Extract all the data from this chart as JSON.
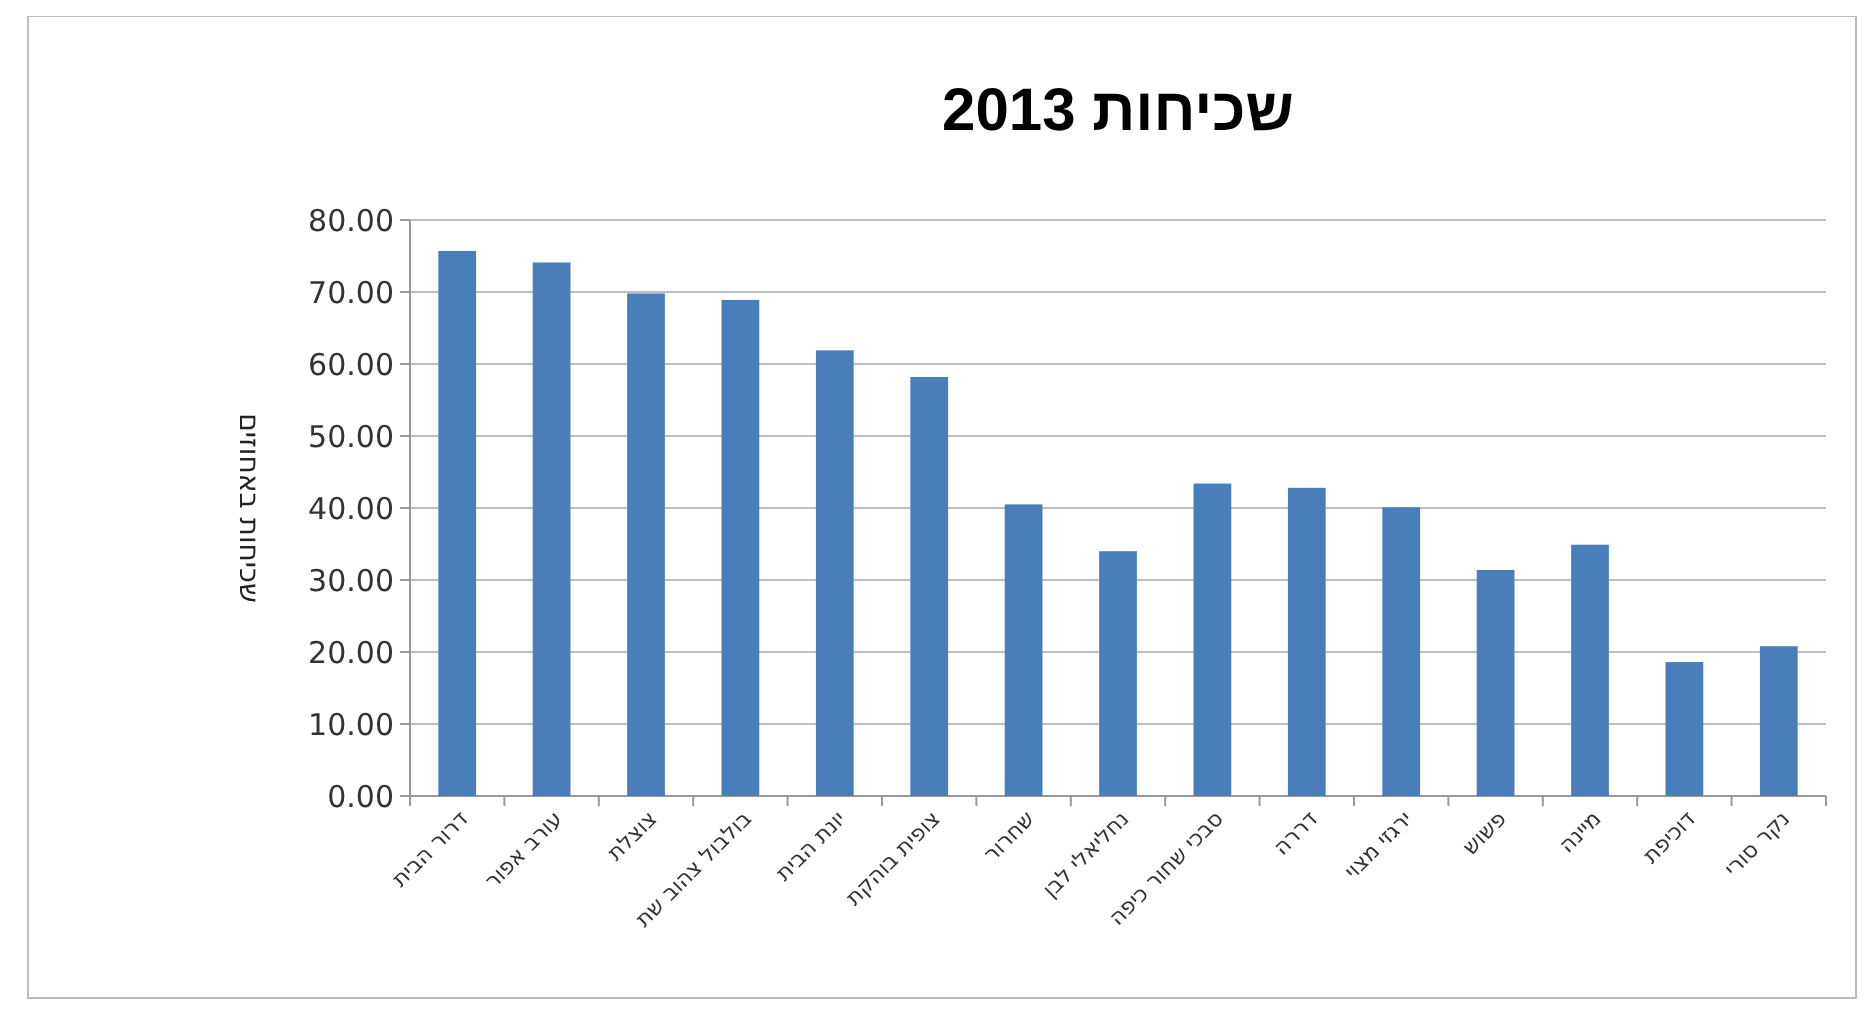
{
  "chart_data": {
    "type": "bar",
    "title": "שכיחות 2013",
    "ylabel": "שכיחות באחוזים",
    "categories": [
      "דרור הבית",
      "עורב אפור",
      "צוצלת",
      "בולבול צהוב שת",
      "יונת הבית",
      "צופית בוהקת",
      "שחרור",
      "נחליאלי לבן",
      "סבכי שחור כיפה",
      "דררה",
      "ירגזי מצוי",
      "פשוש",
      "מיינה",
      "דוכיפת",
      "נקר סורי"
    ],
    "values": [
      75.7,
      74.1,
      69.8,
      68.9,
      61.9,
      58.2,
      40.5,
      34.0,
      43.4,
      42.8,
      40.1,
      31.4,
      34.9,
      18.6,
      20.8
    ],
    "color": "#4a7ebb",
    "ylim": [
      0,
      80
    ],
    "yticks": [
      {
        "value": 0,
        "label": "0.00"
      },
      {
        "value": 10,
        "label": "10.00"
      },
      {
        "value": 20,
        "label": "20.00"
      },
      {
        "value": 30,
        "label": "30.00"
      },
      {
        "value": 40,
        "label": "40.00"
      },
      {
        "value": 50,
        "label": "50.00"
      },
      {
        "value": 60,
        "label": "60.00"
      },
      {
        "value": 70,
        "label": "70.00"
      },
      {
        "value": 80,
        "label": "80.00"
      }
    ],
    "grid": "y"
  }
}
